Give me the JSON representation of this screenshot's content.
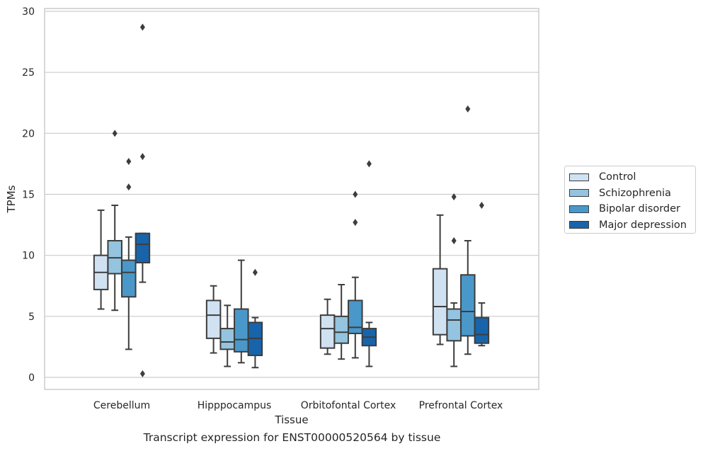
{
  "caption": "Transcript expression for ENST00000520564 by tissue",
  "chart_data": {
    "type": "boxplot",
    "xlabel": "Tissue",
    "ylabel": "TPMs",
    "ylim": [
      -1,
      30.2
    ],
    "yticks": [
      0,
      5,
      10,
      15,
      20,
      25,
      30
    ],
    "grid": "horizontal",
    "legend_position": "right",
    "categories": [
      "Cerebellum",
      "Hipppocampus",
      "Orbitofontal Cortex",
      "Prefrontal Cortex"
    ],
    "series": [
      {
        "name": "Control",
        "color": "#d0e1f2",
        "boxes": [
          {
            "whislo": 5.6,
            "q1": 7.2,
            "med": 8.6,
            "q3": 10.0,
            "whishi": 13.7,
            "fliers": []
          },
          {
            "whislo": 2.0,
            "q1": 3.2,
            "med": 5.1,
            "q3": 6.3,
            "whishi": 7.5,
            "fliers": []
          },
          {
            "whislo": 1.9,
            "q1": 2.4,
            "med": 4.0,
            "q3": 5.1,
            "whishi": 6.4,
            "fliers": []
          },
          {
            "whislo": 2.7,
            "q1": 3.5,
            "med": 5.8,
            "q3": 8.9,
            "whishi": 13.3,
            "fliers": []
          }
        ]
      },
      {
        "name": "Schizophrenia",
        "color": "#94c4df",
        "boxes": [
          {
            "whislo": 5.5,
            "q1": 8.5,
            "med": 9.8,
            "q3": 11.2,
            "whishi": 14.1,
            "fliers": [
              20.0
            ]
          },
          {
            "whislo": 0.9,
            "q1": 2.3,
            "med": 2.9,
            "q3": 4.0,
            "whishi": 5.9,
            "fliers": []
          },
          {
            "whislo": 1.5,
            "q1": 2.8,
            "med": 3.7,
            "q3": 5.0,
            "whishi": 7.6,
            "fliers": []
          },
          {
            "whislo": 0.9,
            "q1": 3.0,
            "med": 4.7,
            "q3": 5.6,
            "whishi": 6.1,
            "fliers": [
              11.2,
              14.8
            ]
          }
        ]
      },
      {
        "name": "Bipolar disorder",
        "color": "#4a98c9",
        "boxes": [
          {
            "whislo": 2.3,
            "q1": 6.6,
            "med": 8.6,
            "q3": 9.6,
            "whishi": 11.5,
            "fliers": [
              15.6,
              17.7
            ]
          },
          {
            "whislo": 1.2,
            "q1": 2.1,
            "med": 3.1,
            "q3": 5.6,
            "whishi": 9.6,
            "fliers": []
          },
          {
            "whislo": 1.6,
            "q1": 3.6,
            "med": 4.1,
            "q3": 6.3,
            "whishi": 8.2,
            "fliers": [
              12.7,
              15.0
            ]
          },
          {
            "whislo": 1.9,
            "q1": 3.4,
            "med": 5.4,
            "q3": 8.4,
            "whishi": 11.2,
            "fliers": [
              22.0
            ]
          }
        ]
      },
      {
        "name": "Major depression",
        "color": "#1764ab",
        "boxes": [
          {
            "whislo": 7.8,
            "q1": 9.4,
            "med": 10.9,
            "q3": 11.8,
            "whishi": 11.8,
            "fliers": [
              0.3,
              18.1,
              28.7
            ]
          },
          {
            "whislo": 0.8,
            "q1": 1.8,
            "med": 3.2,
            "q3": 4.5,
            "whishi": 4.9,
            "fliers": [
              8.6
            ]
          },
          {
            "whislo": 0.9,
            "q1": 2.6,
            "med": 3.3,
            "q3": 4.0,
            "whishi": 4.5,
            "fliers": [
              17.5
            ]
          },
          {
            "whislo": 2.6,
            "q1": 2.8,
            "med": 3.5,
            "q3": 4.9,
            "whishi": 6.1,
            "fliers": [
              14.1
            ]
          }
        ]
      }
    ]
  }
}
